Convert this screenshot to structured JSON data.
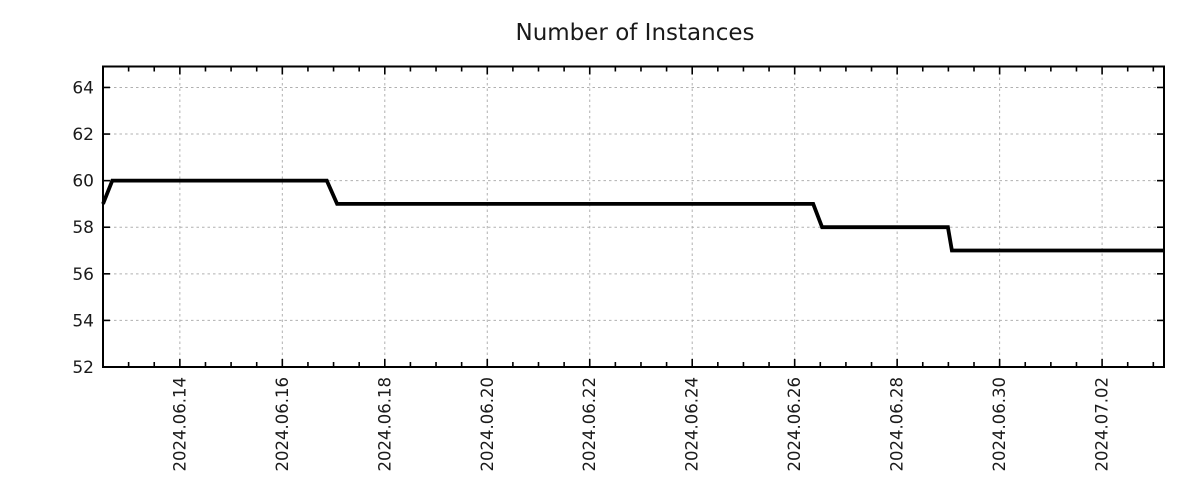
{
  "chart_data": {
    "type": "line",
    "subtype": "step",
    "title": "Number of Instances",
    "xlabel": "",
    "ylabel": "",
    "legend": "none",
    "grid": {
      "visible": true,
      "style": "dashed",
      "color": "#b0b0b0"
    },
    "x_axis": {
      "scale": "time",
      "range": [
        "2024-06-12T12:00",
        "2024-07-03T05:00"
      ],
      "minor_tick_hours": 12,
      "label_rotation_deg": 90,
      "major_ticks": [
        {
          "date": "2024-06-14T00:00",
          "label": "2024.06.14"
        },
        {
          "date": "2024-06-16T00:00",
          "label": "2024.06.16"
        },
        {
          "date": "2024-06-18T00:00",
          "label": "2024.06.18"
        },
        {
          "date": "2024-06-20T00:00",
          "label": "2024.06.20"
        },
        {
          "date": "2024-06-22T00:00",
          "label": "2024.06.22"
        },
        {
          "date": "2024-06-24T00:00",
          "label": "2024.06.24"
        },
        {
          "date": "2024-06-26T00:00",
          "label": "2024.06.26"
        },
        {
          "date": "2024-06-28T00:00",
          "label": "2024.06.28"
        },
        {
          "date": "2024-06-30T00:00",
          "label": "2024.06.30"
        },
        {
          "date": "2024-07-02T00:00",
          "label": "2024.07.02"
        }
      ]
    },
    "y_axis": {
      "range": [
        52,
        64.9
      ],
      "ticks": [
        52,
        54,
        56,
        58,
        60,
        62,
        64
      ]
    },
    "series": [
      {
        "name": "instances",
        "color": "#000000",
        "line_width": 3.8,
        "points": [
          {
            "t": "2024-06-12T12:00",
            "v": 59
          },
          {
            "t": "2024-06-12T16:20",
            "v": 60
          },
          {
            "t": "2024-06-16T20:50",
            "v": 60
          },
          {
            "t": "2024-06-17T01:40",
            "v": 59
          },
          {
            "t": "2024-06-26T08:40",
            "v": 59
          },
          {
            "t": "2024-06-26T12:50",
            "v": 58
          },
          {
            "t": "2024-06-28T23:45",
            "v": 58
          },
          {
            "t": "2024-06-29T01:40",
            "v": 57
          },
          {
            "t": "2024-07-03T05:00",
            "v": 57
          }
        ]
      }
    ]
  }
}
